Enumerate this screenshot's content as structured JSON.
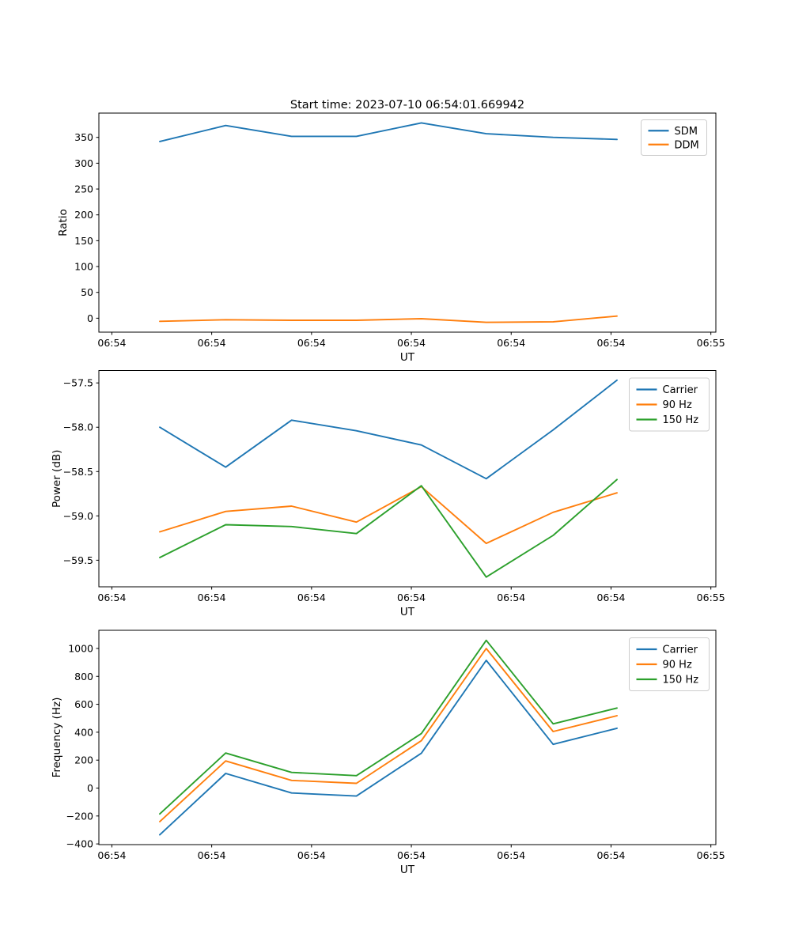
{
  "figure": {
    "title": "Start time: 2023-07-10 06:54:01.669942",
    "background": "#ffffff"
  },
  "colors": {
    "blue": "#1f77b4",
    "orange": "#ff7f0e",
    "green": "#2ca02c",
    "spine": "#000000",
    "legend_border": "#cccccc"
  },
  "chart_data": [
    {
      "type": "line",
      "title": "Start time: 2023-07-10 06:54:01.669942",
      "xlabel": "UT",
      "ylabel": "Ratio",
      "x_unit": "seconds after 06:54:00 UT",
      "x": [
        4.8,
        11.4,
        18.0,
        24.5,
        31.0,
        37.5,
        44.2,
        50.6
      ],
      "xlim": [
        -1.3,
        60.5
      ],
      "x_ticks": [
        0,
        10,
        20,
        30,
        40,
        50,
        60
      ],
      "x_tick_labels": [
        "06:54",
        "06:54",
        "06:54",
        "06:54",
        "06:54",
        "06:54",
        "06:55"
      ],
      "ylim": [
        -27,
        397
      ],
      "y_ticks": [
        0,
        50,
        100,
        150,
        200,
        250,
        300,
        350
      ],
      "y_tick_labels": [
        "0",
        "50",
        "100",
        "150",
        "200",
        "250",
        "300",
        "350"
      ],
      "grid": false,
      "legend_position": "upper right",
      "series": [
        {
          "name": "SDM",
          "color": "#1f77b4",
          "values": [
            342,
            373,
            352,
            352,
            378,
            357,
            350,
            346
          ]
        },
        {
          "name": "DDM",
          "color": "#ff7f0e",
          "values": [
            -6,
            -3,
            -4,
            -4,
            -1,
            -8,
            -7,
            4
          ]
        }
      ]
    },
    {
      "type": "line",
      "title": "",
      "xlabel": "UT",
      "ylabel": "Power (dB)",
      "x_unit": "seconds after 06:54:00 UT",
      "x": [
        4.8,
        11.4,
        18.0,
        24.5,
        31.0,
        37.5,
        44.2,
        50.6
      ],
      "xlim": [
        -1.3,
        60.5
      ],
      "x_ticks": [
        0,
        10,
        20,
        30,
        40,
        50,
        60
      ],
      "x_tick_labels": [
        "06:54",
        "06:54",
        "06:54",
        "06:54",
        "06:54",
        "06:54",
        "06:55"
      ],
      "ylim": [
        -59.8,
        -57.36
      ],
      "y_ticks": [
        -59.5,
        -59.0,
        -58.5,
        -58.0,
        -57.5
      ],
      "y_tick_labels": [
        "−59.5",
        "−59.0",
        "−58.5",
        "−58.0",
        "−57.5"
      ],
      "grid": false,
      "legend_position": "upper right",
      "series": [
        {
          "name": "Carrier",
          "color": "#1f77b4",
          "values": [
            -58.0,
            -58.45,
            -57.92,
            -58.04,
            -58.2,
            -58.58,
            -58.03,
            -57.47
          ]
        },
        {
          "name": "90 Hz",
          "color": "#ff7f0e",
          "values": [
            -59.18,
            -58.95,
            -58.89,
            -59.07,
            -58.67,
            -59.31,
            -58.96,
            -58.74
          ]
        },
        {
          "name": "150 Hz",
          "color": "#2ca02c",
          "values": [
            -59.47,
            -59.1,
            -59.12,
            -59.2,
            -58.66,
            -59.69,
            -59.22,
            -58.59
          ]
        }
      ]
    },
    {
      "type": "line",
      "title": "",
      "xlabel": "UT",
      "ylabel": "Frequency (Hz)",
      "x_unit": "seconds after 06:54:00 UT",
      "x": [
        4.8,
        11.4,
        18.0,
        24.5,
        31.0,
        37.5,
        44.2,
        50.6
      ],
      "xlim": [
        -1.3,
        60.5
      ],
      "x_ticks": [
        0,
        10,
        20,
        30,
        40,
        50,
        60
      ],
      "x_tick_labels": [
        "06:54",
        "06:54",
        "06:54",
        "06:54",
        "06:54",
        "06:54",
        "06:55"
      ],
      "ylim": [
        -405,
        1130
      ],
      "y_ticks": [
        -400,
        -200,
        0,
        200,
        400,
        600,
        800,
        1000
      ],
      "y_tick_labels": [
        "−400",
        "−200",
        "0",
        "200",
        "400",
        "600",
        "800",
        "1000"
      ],
      "grid": false,
      "legend_position": "upper right",
      "series": [
        {
          "name": "Carrier",
          "color": "#1f77b4",
          "values": [
            -335,
            105,
            -35,
            -57,
            250,
            915,
            313,
            428
          ]
        },
        {
          "name": "90 Hz",
          "color": "#ff7f0e",
          "values": [
            -240,
            194,
            55,
            34,
            339,
            1000,
            405,
            518
          ]
        },
        {
          "name": "150 Hz",
          "color": "#2ca02c",
          "values": [
            -185,
            251,
            112,
            89,
            390,
            1058,
            460,
            573
          ]
        }
      ]
    }
  ]
}
